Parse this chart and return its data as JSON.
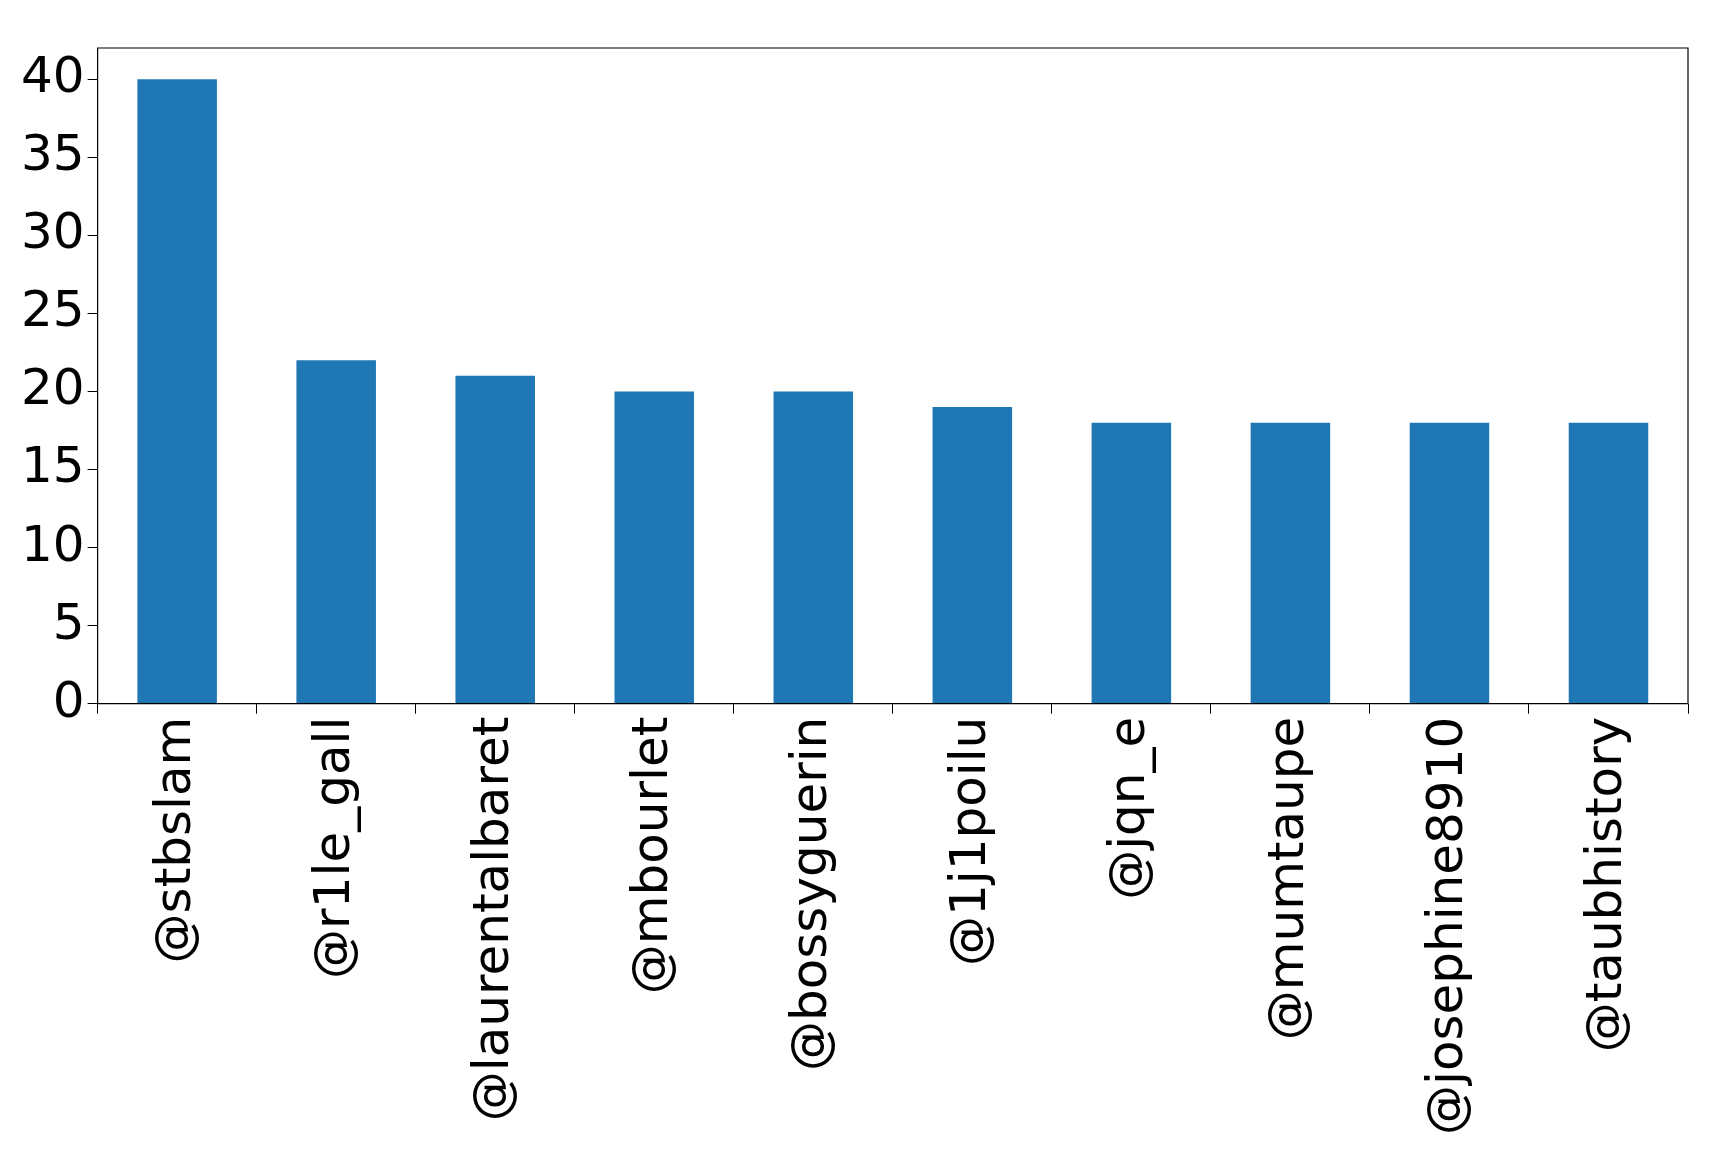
{
  "chart_data": {
    "type": "bar",
    "categories": [
      "@stbslam",
      "@r1le_gall",
      "@laurentalbaret",
      "@mbourlet",
      "@bossyguerin",
      "@1j1poilu",
      "@jqn_e",
      "@mumtaupe",
      "@josephine8910",
      "@taubhistory"
    ],
    "values": [
      40,
      22,
      21,
      20,
      20,
      19,
      18,
      18,
      18,
      18
    ],
    "color": "#1f77b4",
    "ylim": [
      0,
      42
    ],
    "yticks": [
      0,
      5,
      10,
      15,
      20,
      25,
      30,
      35,
      40
    ],
    "grid": false,
    "legend": false
  }
}
